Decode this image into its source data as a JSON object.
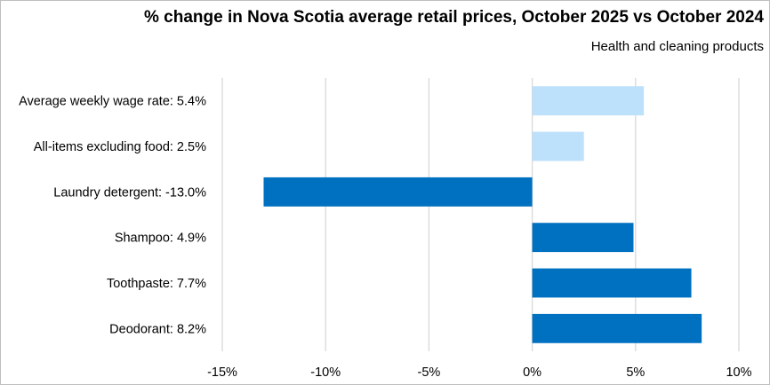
{
  "chart_data": {
    "type": "bar",
    "orientation": "horizontal",
    "title": "% change in Nova Scotia average retail prices, October 2025 vs October 2024",
    "subtitle": "Health and cleaning products",
    "categories": [
      "Average weekly wage rate: 5.4%",
      "All-items excluding food: 2.5%",
      "Laundry detergent: -13.0%",
      "Shampoo: 4.9%",
      "Toothpaste: 7.7%",
      "Deodorant: 8.2%"
    ],
    "values": [
      5.4,
      2.5,
      -13.0,
      4.9,
      7.7,
      8.2
    ],
    "bar_colors": [
      "#bde0fb",
      "#bde0fb",
      "#0070c0",
      "#0070c0",
      "#0070c0",
      "#0070c0"
    ],
    "xlim": [
      -15,
      10
    ],
    "xticks": [
      -15,
      -10,
      -5,
      0,
      5,
      10
    ],
    "xtick_labels": [
      "-15%",
      "-10%",
      "-5%",
      "0%",
      "5%",
      "10%"
    ],
    "grid": true,
    "gridline_color": "#d9d9d9",
    "xlabel": "",
    "ylabel": ""
  }
}
